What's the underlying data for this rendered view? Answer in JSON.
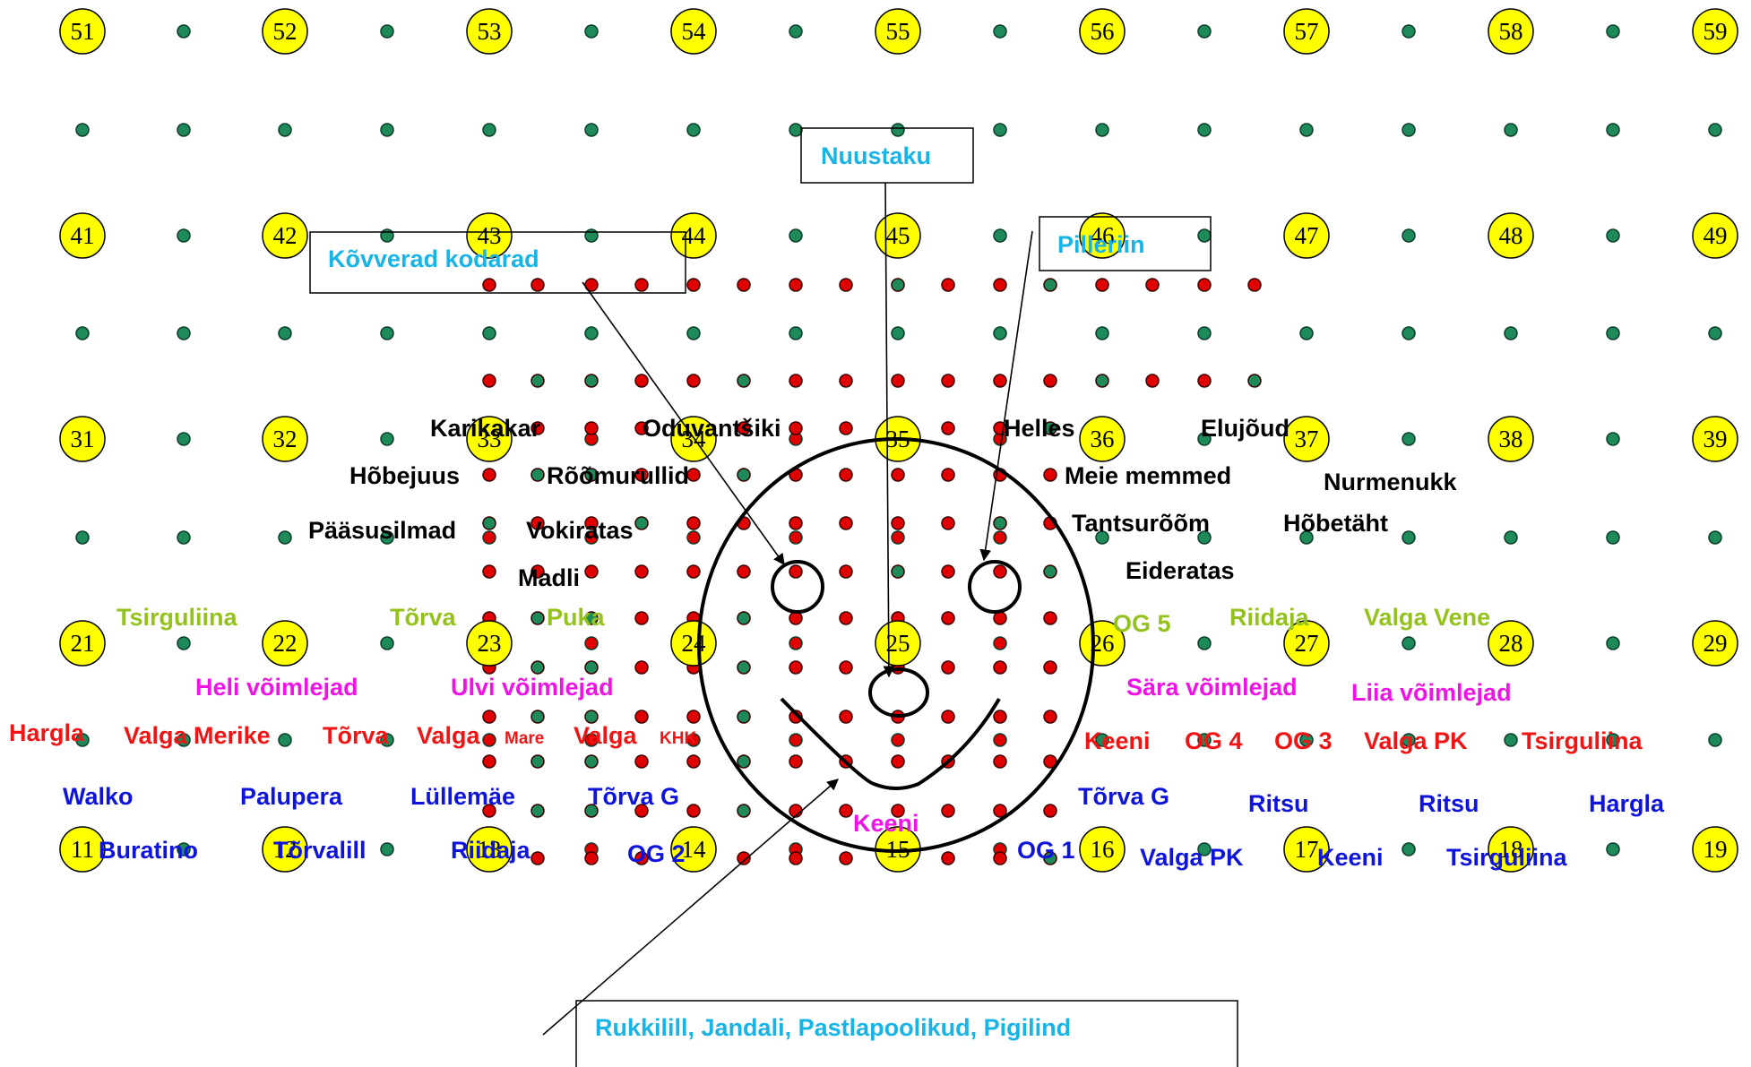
{
  "colors": {
    "grid_dot": "#1e8a5a",
    "formation_dot": "#e00000",
    "marker_fill": "#ffff00",
    "black_group": "#000000",
    "cyan_label": "#19b4e6",
    "green_group": "#94c21c",
    "magenta_group": "#f013e6",
    "red_group": "#f01414",
    "blue_group": "#0f14dc"
  },
  "markers": [
    "51",
    "52",
    "53",
    "54",
    "55",
    "56",
    "57",
    "58",
    "59",
    "41",
    "42",
    "43",
    "44",
    "45",
    "46",
    "47",
    "48",
    "49",
    "31",
    "32",
    "33",
    "34",
    "35",
    "36",
    "37",
    "38",
    "39",
    "21",
    "22",
    "23",
    "24",
    "25",
    "26",
    "27",
    "28",
    "29",
    "11",
    "12",
    "13",
    "14",
    "15",
    "16",
    "17",
    "18",
    "19"
  ],
  "callouts": {
    "nuustaku": "Nuustaku",
    "kovverad": "Kõvverad kodarad",
    "pilleriin": "Pilleriin",
    "bottom": "Rukkilill, Jandali, Pastlapoolikud, Pigilind"
  },
  "labels": {
    "black": [
      "Karikakar",
      "Oduvantšiki",
      "Helles",
      "Elujõud",
      "Hõbejuus",
      "Rõõmurullid",
      "Meie memmed",
      "Nurmenukk",
      "Pääsusilmad",
      "Vokiratas",
      "Tantsurõõm",
      "Hõbetäht",
      "Madli",
      "Eideratas"
    ],
    "green": [
      "Tsirguliina",
      "Tõrva",
      "Puka",
      "OG 5",
      "Riidaja",
      "Valga Vene"
    ],
    "magenta": [
      "Heli võimlejad",
      "Ulvi võimlejad",
      "Sära võimlejad",
      "Liia võimlejad",
      "Keeni"
    ],
    "red": [
      "Hargla",
      "Valga Merike",
      "Tõrva",
      "Valga",
      "Mare",
      "Valga",
      "KHK",
      "Keeni",
      "OG 4",
      "OG 3",
      "Valga PK",
      "Tsirguliina"
    ],
    "blue": [
      "Walko",
      "Palupera",
      "Lüllemäe",
      "Tõrva G",
      "Tõrva G",
      "Ritsu",
      "Ritsu",
      "Hargla",
      "Buratino",
      "Tõrvalill",
      "Riidaja",
      "OG 2",
      "OG 1",
      "Valga PK",
      "Keeni",
      "Tsirguliina"
    ]
  }
}
